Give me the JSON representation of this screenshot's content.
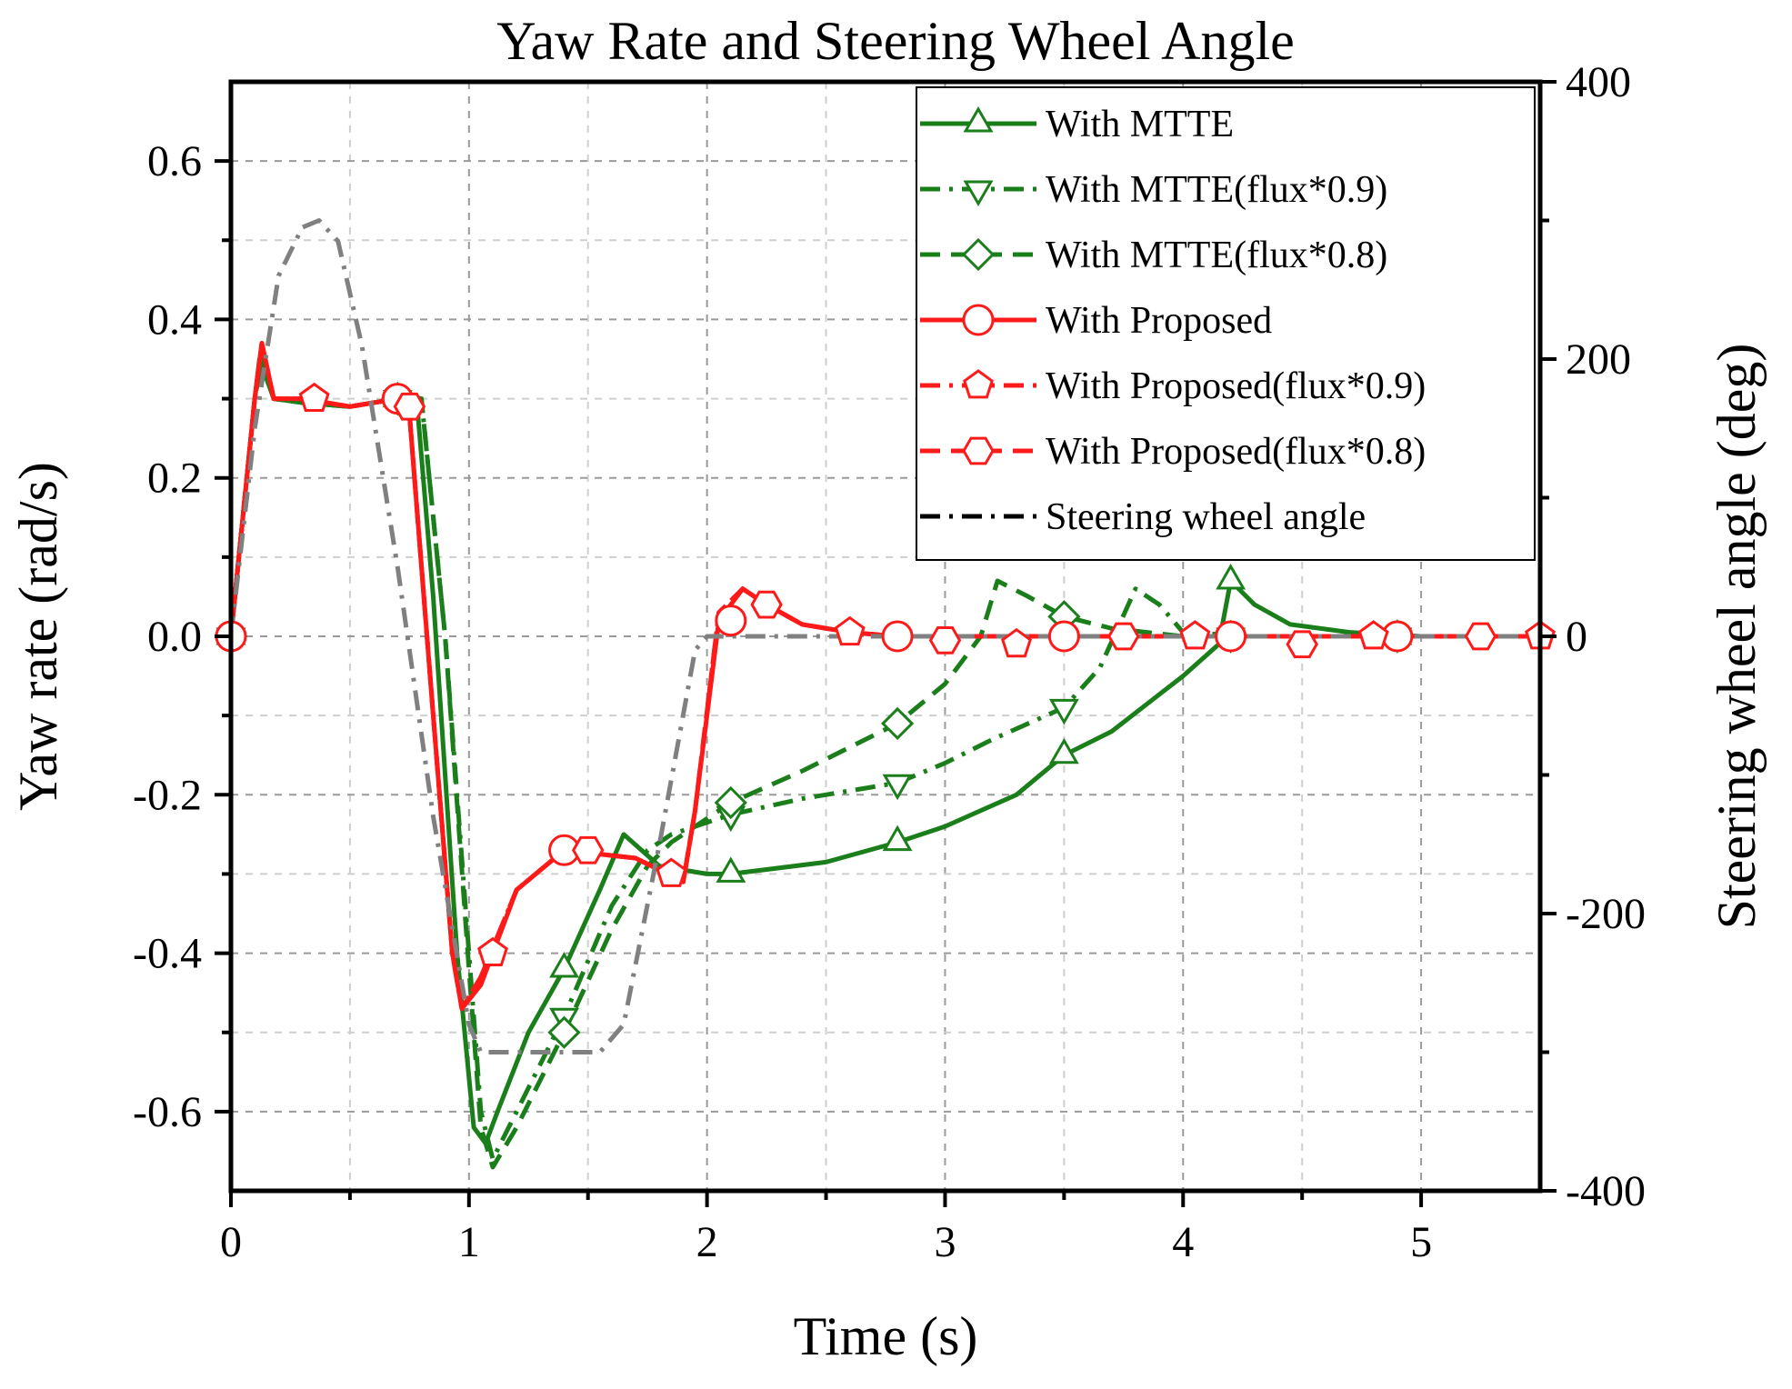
{
  "chart_data": {
    "type": "line",
    "title": "Yaw Rate and Steering Wheel Angle",
    "xlabel": "Time (s)",
    "ylabel": "Yaw rate (rad/s)",
    "y2label": "Steering wheel angle (deg)",
    "xlim": [
      0,
      5.5
    ],
    "ylim": [
      -0.7,
      0.7
    ],
    "y2lim": [
      -400,
      400
    ],
    "xticks": [
      0,
      1,
      2,
      3,
      4,
      5
    ],
    "xtick_labels": [
      "0",
      "1",
      "2",
      "3",
      "4",
      "5"
    ],
    "yticks": [
      0.6,
      0.4,
      0.2,
      0.0,
      -0.2,
      -0.4,
      -0.6
    ],
    "ytick_labels": [
      "0.6",
      "0.4",
      "0.2",
      "0.0",
      "-0.2",
      "-0.4",
      "-0.6"
    ],
    "y2ticks": [
      400,
      200,
      0,
      -200,
      -400
    ],
    "y2tick_labels": [
      "400",
      "200",
      "0",
      "-200",
      "-400"
    ],
    "grid": true,
    "legend_position": "top-right",
    "series": [
      {
        "name": "With MTTE",
        "color": "#1a7f1a",
        "dash": "solid",
        "marker": "triangle-up",
        "axis": "left",
        "x": [
          0,
          0.1,
          0.12,
          0.18,
          0.3,
          0.5,
          0.7,
          0.78,
          0.85,
          0.95,
          1.02,
          1.07,
          1.12,
          1.25,
          1.4,
          1.55,
          1.65,
          1.8,
          2.0,
          2.1,
          2.5,
          2.8,
          3.0,
          3.3,
          3.5,
          3.7,
          4.0,
          4.15,
          4.2,
          4.3,
          4.45,
          4.7,
          5.0,
          5.5
        ],
        "y": [
          0.0,
          0.3,
          0.35,
          0.3,
          0.295,
          0.29,
          0.3,
          0.3,
          0.05,
          -0.4,
          -0.62,
          -0.64,
          -0.6,
          -0.5,
          -0.42,
          -0.32,
          -0.25,
          -0.29,
          -0.3,
          -0.3,
          -0.285,
          -0.26,
          -0.24,
          -0.2,
          -0.15,
          -0.12,
          -0.05,
          -0.01,
          0.07,
          0.04,
          0.015,
          0.005,
          0.0,
          0.0
        ],
        "marker_x": [
          0,
          0.7,
          1.4,
          2.1,
          2.8,
          3.5,
          4.2,
          4.9
        ],
        "marker_y": [
          0.0,
          0.3,
          -0.42,
          -0.3,
          -0.26,
          -0.15,
          0.07,
          0.0
        ]
      },
      {
        "name": "With MTTE(flux*0.9)",
        "color": "#1a7f1a",
        "dash": "dashdot",
        "marker": "triangle-down",
        "axis": "left",
        "x": [
          0,
          0.1,
          0.13,
          0.18,
          0.3,
          0.5,
          0.7,
          0.8,
          0.9,
          1.0,
          1.05,
          1.1,
          1.2,
          1.4,
          1.6,
          1.75,
          1.85,
          2.0,
          2.1,
          2.4,
          2.8,
          3.0,
          3.2,
          3.5,
          3.65,
          3.8,
          3.9,
          4.0,
          4.3,
          4.7,
          5.0,
          5.5
        ],
        "y": [
          0.0,
          0.3,
          0.35,
          0.3,
          0.295,
          0.29,
          0.3,
          0.3,
          0.0,
          -0.4,
          -0.6,
          -0.66,
          -0.6,
          -0.48,
          -0.34,
          -0.27,
          -0.25,
          -0.235,
          -0.225,
          -0.205,
          -0.185,
          -0.16,
          -0.13,
          -0.09,
          -0.04,
          0.06,
          0.04,
          0.005,
          0.0,
          0.0,
          0.0,
          0.0
        ],
        "marker_x": [
          0,
          0.7,
          1.4,
          2.1,
          2.8,
          3.5,
          4.2,
          4.9
        ],
        "marker_y": [
          0.0,
          0.3,
          -0.48,
          -0.225,
          -0.185,
          -0.09,
          0.0,
          0.0
        ]
      },
      {
        "name": "With MTTE(flux*0.8)",
        "color": "#1a7f1a",
        "dash": "dashed",
        "marker": "diamond",
        "axis": "left",
        "x": [
          0,
          0.1,
          0.13,
          0.18,
          0.3,
          0.5,
          0.7,
          0.8,
          0.9,
          1.0,
          1.05,
          1.1,
          1.2,
          1.4,
          1.6,
          1.75,
          1.85,
          2.0,
          2.1,
          2.4,
          2.8,
          3.0,
          3.15,
          3.22,
          3.35,
          3.5,
          3.7,
          4.0,
          4.5,
          5.0,
          5.5
        ],
        "y": [
          0.0,
          0.3,
          0.35,
          0.3,
          0.295,
          0.29,
          0.3,
          0.3,
          0.0,
          -0.42,
          -0.62,
          -0.67,
          -0.62,
          -0.5,
          -0.37,
          -0.29,
          -0.26,
          -0.23,
          -0.21,
          -0.17,
          -0.11,
          -0.06,
          -0.0,
          0.07,
          0.05,
          0.025,
          0.01,
          0.0,
          0.0,
          0.0,
          0.0
        ],
        "marker_x": [
          0,
          0.7,
          1.4,
          2.1,
          2.8,
          3.5,
          4.2,
          4.9
        ],
        "marker_y": [
          0.0,
          0.3,
          -0.5,
          -0.21,
          -0.11,
          0.025,
          0.0,
          0.0
        ]
      },
      {
        "name": "With Proposed",
        "color": "#ff1a1a",
        "dash": "solid",
        "marker": "circle",
        "axis": "left",
        "x": [
          0,
          0.1,
          0.13,
          0.18,
          0.3,
          0.5,
          0.7,
          0.75,
          0.85,
          0.93,
          0.97,
          1.05,
          1.2,
          1.4,
          1.7,
          1.9,
          1.95,
          2.05,
          2.15,
          2.25,
          2.4,
          2.6,
          2.8,
          3.0,
          3.5,
          4.0,
          4.5,
          5.0,
          5.5
        ],
        "y": [
          0.0,
          0.3,
          0.37,
          0.3,
          0.3,
          0.29,
          0.3,
          0.28,
          -0.1,
          -0.4,
          -0.47,
          -0.44,
          -0.32,
          -0.27,
          -0.28,
          -0.31,
          -0.22,
          0.02,
          0.06,
          0.04,
          0.015,
          0.005,
          0.0,
          0.0,
          0.0,
          0.0,
          0.0,
          0.0,
          0.0
        ],
        "marker_x": [
          0,
          0.7,
          1.4,
          2.1,
          2.8,
          3.5,
          4.2,
          4.9
        ],
        "marker_y": [
          0.0,
          0.3,
          -0.27,
          0.02,
          0.0,
          0.0,
          0.0,
          0.0
        ]
      },
      {
        "name": "With Proposed(flux*0.9)",
        "color": "#ff1a1a",
        "dash": "dashdot",
        "marker": "pentagon",
        "axis": "left",
        "x": [
          0,
          0.1,
          0.13,
          0.18,
          0.3,
          0.5,
          0.7,
          0.75,
          0.85,
          0.93,
          0.97,
          1.05,
          1.2,
          1.4,
          1.7,
          1.9,
          1.95,
          2.05,
          2.15,
          2.25,
          2.4,
          2.6,
          2.8,
          3.0,
          3.5,
          4.0,
          4.5,
          5.0,
          5.5
        ],
        "y": [
          0.0,
          0.3,
          0.37,
          0.3,
          0.3,
          0.29,
          0.3,
          0.28,
          -0.1,
          -0.4,
          -0.47,
          -0.43,
          -0.32,
          -0.27,
          -0.28,
          -0.31,
          -0.22,
          0.03,
          0.06,
          0.04,
          0.015,
          0.005,
          0.0,
          0.0,
          0.0,
          0.0,
          0.0,
          0.0,
          0.0
        ],
        "marker_x": [
          0.35,
          1.1,
          1.85,
          2.6,
          3.3,
          4.05,
          4.8,
          5.5
        ],
        "marker_y": [
          0.3,
          -0.4,
          -0.3,
          0.005,
          -0.01,
          0.0,
          0.0,
          0.0
        ]
      },
      {
        "name": "With Proposed(flux*0.8)",
        "color": "#ff1a1a",
        "dash": "dashed",
        "marker": "hexagon",
        "axis": "left",
        "x": [
          0,
          0.1,
          0.13,
          0.18,
          0.3,
          0.5,
          0.7,
          0.75,
          0.85,
          0.93,
          0.97,
          1.05,
          1.2,
          1.4,
          1.7,
          1.9,
          1.95,
          2.05,
          2.15,
          2.25,
          2.4,
          2.6,
          2.8,
          3.0,
          3.5,
          4.0,
          4.5,
          5.0,
          5.5
        ],
        "y": [
          0.0,
          0.3,
          0.37,
          0.3,
          0.3,
          0.29,
          0.3,
          0.28,
          -0.1,
          -0.4,
          -0.47,
          -0.43,
          -0.32,
          -0.27,
          -0.28,
          -0.31,
          -0.22,
          0.03,
          0.06,
          0.04,
          0.015,
          0.005,
          0.0,
          0.0,
          0.0,
          0.0,
          0.0,
          0.0,
          0.0
        ],
        "marker_x": [
          0.75,
          1.5,
          2.25,
          3.0,
          3.75,
          4.5,
          5.25
        ],
        "marker_y": [
          0.29,
          -0.27,
          0.04,
          -0.005,
          0.0,
          -0.01,
          0.0
        ]
      },
      {
        "name": "Steering wheel angle",
        "color": "#808080",
        "dash": "dashdot",
        "marker": "none",
        "axis": "right",
        "x": [
          0,
          0.1,
          0.2,
          0.3,
          0.37,
          0.45,
          0.55,
          0.7,
          0.85,
          1.0,
          1.05,
          1.1,
          1.55,
          1.65,
          1.8,
          1.95,
          2.0,
          5.5
        ],
        "y": [
          0,
          150,
          260,
          295,
          300,
          285,
          210,
          50,
          -130,
          -280,
          -300,
          -300,
          -300,
          -280,
          -150,
          -10,
          0,
          0
        ]
      }
    ]
  }
}
